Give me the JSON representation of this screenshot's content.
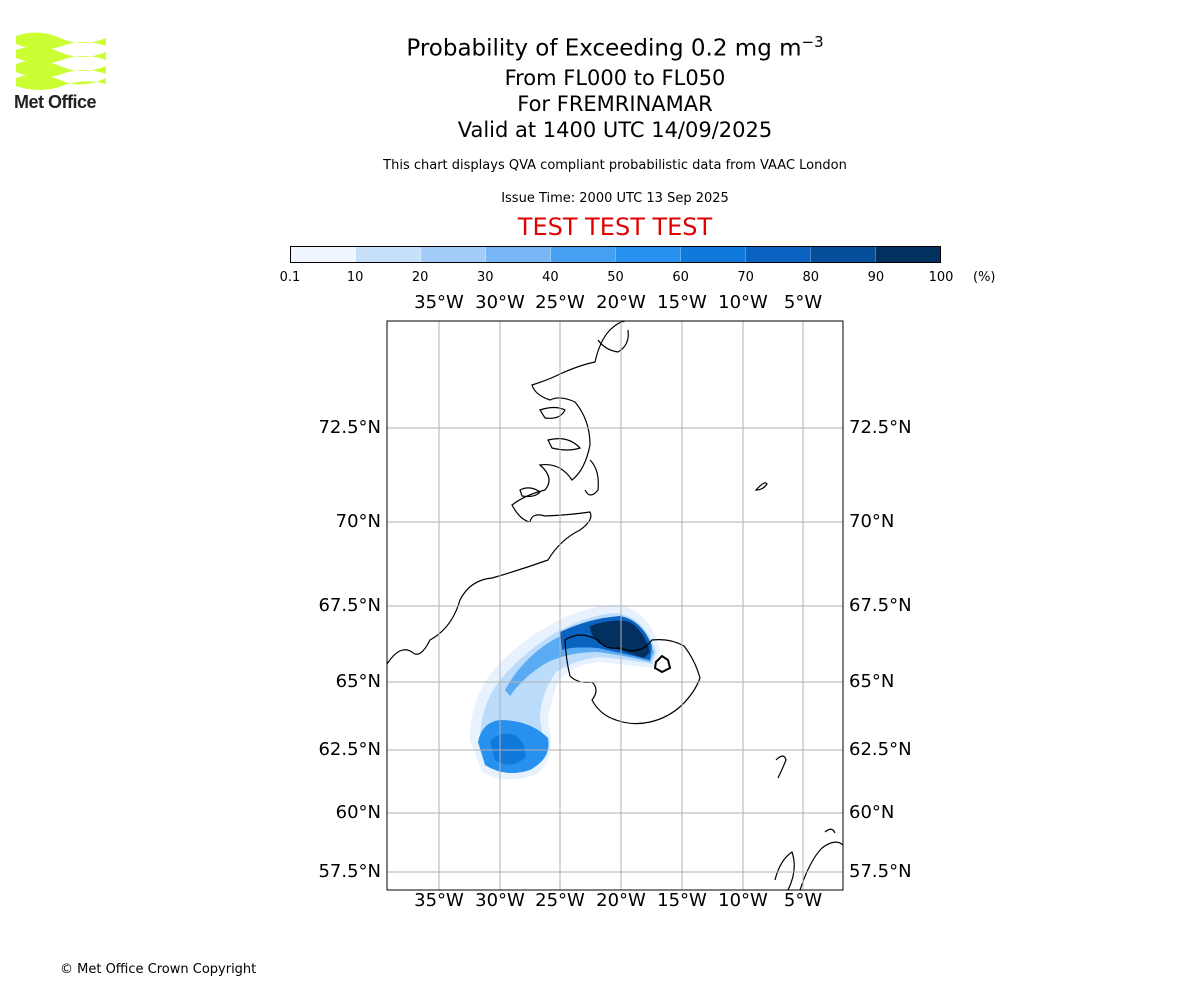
{
  "logo": {
    "text": "Met Office",
    "color": "#ccff33"
  },
  "title": {
    "line1_prefix": "Probability of Exceeding 0.2 mg m",
    "line1_sup": "−3",
    "line2": "From FL000 to FL050",
    "line3": "For FREMRINAMAR",
    "line4": "Valid at 1400 UTC 14/09/2025"
  },
  "subtitle": "This chart displays QVA compliant probabilistic data from VAAC London",
  "issue_time": "Issue Time: 2000 UTC 13 Sep 2025",
  "test_banner": "TEST TEST TEST",
  "colorbar": {
    "ticks": [
      "0.1",
      "10",
      "20",
      "30",
      "40",
      "50",
      "60",
      "70",
      "80",
      "90",
      "100"
    ],
    "unit": "(%)",
    "colors": [
      "#f0f6ff",
      "#c8e1fb",
      "#a3cdf8",
      "#77b7f5",
      "#45a0f2",
      "#2890ee",
      "#0f79dc",
      "#0a63c0",
      "#074e9a",
      "#03305f"
    ]
  },
  "map": {
    "lon_labels": [
      "35°W",
      "30°W",
      "25°W",
      "20°W",
      "15°W",
      "10°W",
      "5°W"
    ],
    "lat_labels": [
      "72.5°N",
      "70°N",
      "67.5°N",
      "65°N",
      "62.5°N",
      "60°N",
      "57.5°N"
    ]
  },
  "copyright": "© Met Office Crown Copyright"
}
